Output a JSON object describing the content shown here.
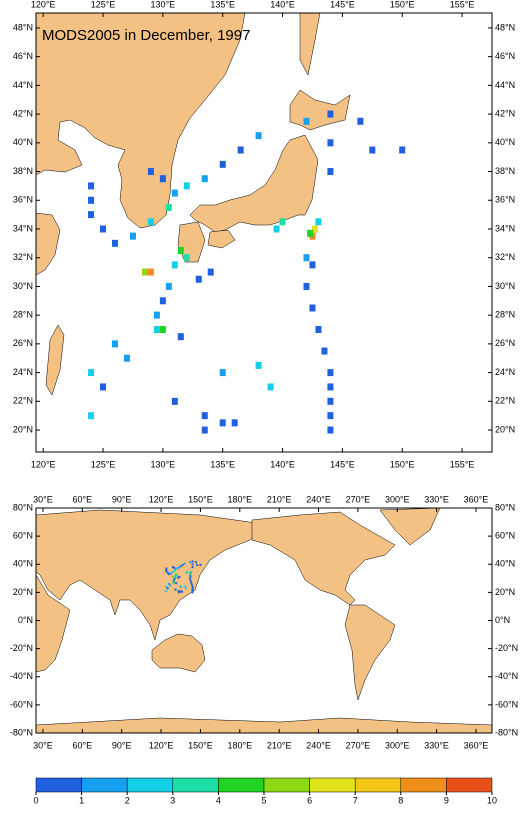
{
  "chart_data": [
    {
      "type": "map",
      "title": "MODS2005 in December, 1997",
      "xlim": [
        119.4,
        157.5
      ],
      "ylim": [
        18.47,
        49.04
      ],
      "xticks": [
        {
          "value": 120,
          "label": "120°E"
        },
        {
          "value": 125,
          "label": "125°E"
        },
        {
          "value": 130,
          "label": "130°E"
        },
        {
          "value": 135,
          "label": "135°E"
        },
        {
          "value": 140,
          "label": "140°E"
        },
        {
          "value": 145,
          "label": "145°E"
        },
        {
          "value": 150,
          "label": "150°E"
        },
        {
          "value": 155,
          "label": "155°E"
        }
      ],
      "yticks": [
        {
          "value": 20,
          "label": "20°N"
        },
        {
          "value": 22,
          "label": "22°N"
        },
        {
          "value": 24,
          "label": "24°N"
        },
        {
          "value": 26,
          "label": "26°N"
        },
        {
          "value": 28,
          "label": "28°N"
        },
        {
          "value": 30,
          "label": "30°N"
        },
        {
          "value": 32,
          "label": "32°N"
        },
        {
          "value": 34,
          "label": "34°N"
        },
        {
          "value": 36,
          "label": "36°N"
        },
        {
          "value": 38,
          "label": "38°N"
        },
        {
          "value": 40,
          "label": "40°N"
        },
        {
          "value": 42,
          "label": "42°N"
        },
        {
          "value": 44,
          "label": "44°N"
        },
        {
          "value": 46,
          "label": "46°N"
        },
        {
          "value": 48,
          "label": "48°N"
        }
      ],
      "cells": [
        {
          "lon": 144.0,
          "lat": 20.0,
          "count": 1
        },
        {
          "lon": 144.0,
          "lat": 21.0,
          "count": 1
        },
        {
          "lon": 144.0,
          "lat": 22.0,
          "count": 1
        },
        {
          "lon": 144.0,
          "lat": 23.0,
          "count": 1
        },
        {
          "lon": 144.0,
          "lat": 24.0,
          "count": 1
        },
        {
          "lon": 143.5,
          "lat": 25.5,
          "count": 1
        },
        {
          "lon": 143.0,
          "lat": 27.0,
          "count": 1
        },
        {
          "lon": 142.5,
          "lat": 28.5,
          "count": 1
        },
        {
          "lon": 142.0,
          "lat": 30.0,
          "count": 1
        },
        {
          "lon": 142.5,
          "lat": 31.5,
          "count": 1
        },
        {
          "lon": 142.0,
          "lat": 32.0,
          "count": 2
        },
        {
          "lon": 142.5,
          "lat": 33.5,
          "count": 9
        },
        {
          "lon": 142.7,
          "lat": 34.0,
          "count": 7
        },
        {
          "lon": 142.3,
          "lat": 33.7,
          "count": 5
        },
        {
          "lon": 143.0,
          "lat": 34.5,
          "count": 3
        },
        {
          "lon": 140.0,
          "lat": 34.5,
          "count": 4
        },
        {
          "lon": 139.5,
          "lat": 34.0,
          "count": 3
        },
        {
          "lon": 144.0,
          "lat": 38.0,
          "count": 1
        },
        {
          "lon": 144.0,
          "lat": 40.0,
          "count": 1
        },
        {
          "lon": 144.0,
          "lat": 42.0,
          "count": 1
        },
        {
          "lon": 146.5,
          "lat": 41.5,
          "count": 1
        },
        {
          "lon": 147.5,
          "lat": 39.5,
          "count": 1
        },
        {
          "lon": 150.0,
          "lat": 39.5,
          "count": 1
        },
        {
          "lon": 142.0,
          "lat": 41.5,
          "count": 2
        },
        {
          "lon": 124.0,
          "lat": 37.0,
          "count": 1
        },
        {
          "lon": 124.0,
          "lat": 36.0,
          "count": 1
        },
        {
          "lon": 124.0,
          "lat": 35.0,
          "count": 1
        },
        {
          "lon": 125.0,
          "lat": 34.0,
          "count": 1
        },
        {
          "lon": 126.0,
          "lat": 33.0,
          "count": 1
        },
        {
          "lon": 127.5,
          "lat": 33.5,
          "count": 2
        },
        {
          "lon": 129.0,
          "lat": 34.5,
          "count": 3
        },
        {
          "lon": 130.5,
          "lat": 35.5,
          "count": 4
        },
        {
          "lon": 131.0,
          "lat": 36.5,
          "count": 2
        },
        {
          "lon": 132.0,
          "lat": 37.0,
          "count": 3
        },
        {
          "lon": 133.5,
          "lat": 37.5,
          "count": 2
        },
        {
          "lon": 135.0,
          "lat": 38.5,
          "count": 1
        },
        {
          "lon": 136.5,
          "lat": 39.5,
          "count": 1
        },
        {
          "lon": 138.0,
          "lat": 40.5,
          "count": 2
        },
        {
          "lon": 129.0,
          "lat": 38.0,
          "count": 1
        },
        {
          "lon": 130.0,
          "lat": 37.5,
          "count": 1
        },
        {
          "lon": 129.0,
          "lat": 31.0,
          "count": 9
        },
        {
          "lon": 128.5,
          "lat": 31.0,
          "count": 6
        },
        {
          "lon": 131.0,
          "lat": 31.5,
          "count": 3
        },
        {
          "lon": 131.5,
          "lat": 32.5,
          "count": 5
        },
        {
          "lon": 132.0,
          "lat": 32.0,
          "count": 4
        },
        {
          "lon": 130.5,
          "lat": 30.0,
          "count": 2
        },
        {
          "lon": 130.0,
          "lat": 29.0,
          "count": 1
        },
        {
          "lon": 129.5,
          "lat": 28.0,
          "count": 2
        },
        {
          "lon": 129.5,
          "lat": 27.0,
          "count": 3
        },
        {
          "lon": 130.0,
          "lat": 27.0,
          "count": 5
        },
        {
          "lon": 133.0,
          "lat": 30.5,
          "count": 1
        },
        {
          "lon": 134.0,
          "lat": 31.0,
          "count": 1
        },
        {
          "lon": 126.0,
          "lat": 26.0,
          "count": 2
        },
        {
          "lon": 127.0,
          "lat": 25.0,
          "count": 2
        },
        {
          "lon": 124.0,
          "lat": 24.0,
          "count": 3
        },
        {
          "lon": 125.0,
          "lat": 23.0,
          "count": 1
        },
        {
          "lon": 124.0,
          "lat": 21.0,
          "count": 3
        },
        {
          "lon": 133.5,
          "lat": 20.0,
          "count": 1
        },
        {
          "lon": 133.5,
          "lat": 21.0,
          "count": 1
        },
        {
          "lon": 135.0,
          "lat": 20.5,
          "count": 1
        },
        {
          "lon": 136.0,
          "lat": 20.5,
          "count": 1
        },
        {
          "lon": 138.0,
          "lat": 24.5,
          "count": 3
        },
        {
          "lon": 139.0,
          "lat": 23.0,
          "count": 3
        },
        {
          "lon": 131.0,
          "lat": 22.0,
          "count": 1
        },
        {
          "lon": 135.0,
          "lat": 24.0,
          "count": 2
        },
        {
          "lon": 131.5,
          "lat": 26.5,
          "count": 1
        }
      ]
    },
    {
      "type": "map",
      "xlim": [
        24.7,
        372.2
      ],
      "ylim": [
        -80,
        80
      ],
      "xticks": [
        {
          "value": 30,
          "label": "30°E"
        },
        {
          "value": 60,
          "label": "60°E"
        },
        {
          "value": 90,
          "label": "90°E"
        },
        {
          "value": 120,
          "label": "120°E"
        },
        {
          "value": 150,
          "label": "150°E"
        },
        {
          "value": 180,
          "label": "180°E"
        },
        {
          "value": 210,
          "label": "210°E"
        },
        {
          "value": 240,
          "label": "240°E"
        },
        {
          "value": 270,
          "label": "270°E"
        },
        {
          "value": 300,
          "label": "300°E"
        },
        {
          "value": 330,
          "label": "330°E"
        },
        {
          "value": 360,
          "label": "360°E"
        }
      ],
      "yticks": [
        {
          "value": -80,
          "label": "-80°N"
        },
        {
          "value": -60,
          "label": "-60°N"
        },
        {
          "value": -40,
          "label": "-40°N"
        },
        {
          "value": -20,
          "label": "-20°N"
        },
        {
          "value": 0,
          "label": "0°N"
        },
        {
          "value": 20,
          "label": "20°N"
        },
        {
          "value": 40,
          "label": "40°N"
        },
        {
          "value": 60,
          "label": "60°N"
        },
        {
          "value": 80,
          "label": "80°N"
        }
      ]
    },
    {
      "type": "colorbar",
      "ticks": [
        0,
        1,
        2,
        3,
        4,
        5,
        6,
        7,
        8,
        9,
        10
      ],
      "colors": [
        "#1f5fe0",
        "#179ff0",
        "#14d0e6",
        "#1ddfa6",
        "#22d322",
        "#8cd815",
        "#e0e21a",
        "#f3c617",
        "#ef8f19",
        "#e8501b"
      ]
    }
  ]
}
